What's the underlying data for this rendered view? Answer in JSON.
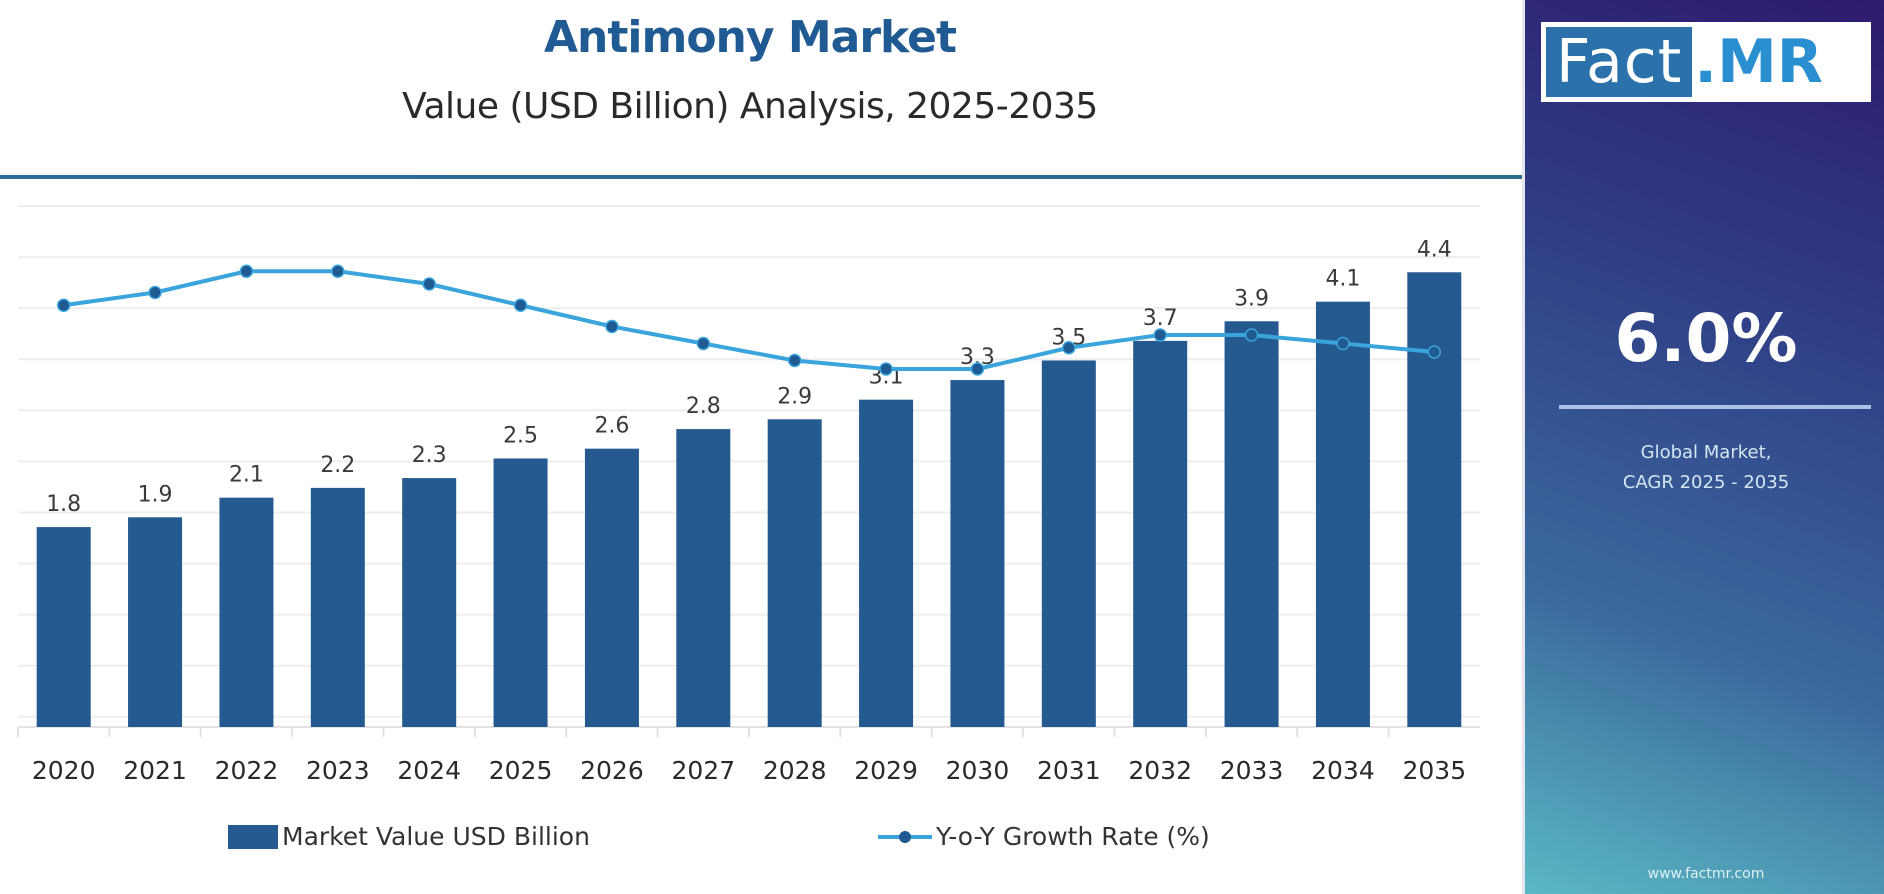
{
  "header": {
    "title": "Antimony Market",
    "subtitle": "Value (USD Billion) Analysis, 2025-2035"
  },
  "sidebar": {
    "logo_left": "Fact",
    "logo_right": ".MR",
    "cagr_value": "6.0%",
    "cagr_label_line1": "Global Market,",
    "cagr_label_line2": "CAGR 2025 - 2035",
    "website": "www.factmr.com"
  },
  "legend": {
    "bar_label": "Market Value USD Billion",
    "line_label": "Y-o-Y Growth Rate (%)"
  },
  "colors": {
    "bar": "#245a8f",
    "line": "#3aa5dc",
    "marker": "#1f5a93",
    "title": "#1f5a93"
  },
  "chart_data": {
    "type": "bar",
    "title": "Antimony Market",
    "subtitle": "Value (USD Billion) Analysis, 2025-2035",
    "xlabel": "",
    "ylabel": "",
    "grid": true,
    "legend_position": "bottom",
    "categories": [
      "2020",
      "2021",
      "2022",
      "2023",
      "2024",
      "2025",
      "2026",
      "2027",
      "2028",
      "2029",
      "2030",
      "2031",
      "2032",
      "2033",
      "2034",
      "2035"
    ],
    "series": [
      {
        "name": "Market Value USD Billion",
        "type": "bar",
        "values": [
          1.8,
          1.9,
          2.1,
          2.2,
          2.3,
          2.5,
          2.6,
          2.8,
          2.9,
          3.1,
          3.3,
          3.5,
          3.7,
          3.9,
          4.1,
          4.4
        ],
        "labels": [
          "1.8",
          "1.9",
          "2.1",
          "2.2",
          "2.3",
          "2.5",
          "2.6",
          "2.8",
          "2.9",
          "3.1",
          "3.3",
          "3.5",
          "3.7",
          "3.9",
          "4.1",
          "4.4"
        ]
      },
      {
        "name": "Y-o-Y Growth Rate (%)",
        "type": "line",
        "values": [
          6.2,
          6.5,
          7.0,
          7.0,
          6.7,
          6.2,
          5.7,
          5.3,
          4.9,
          4.7,
          4.7,
          5.2,
          5.5,
          5.5,
          5.3,
          5.1
        ]
      }
    ],
    "bar_ylim": [
      0,
      5
    ],
    "line_ylim": [
      0,
      8
    ]
  }
}
